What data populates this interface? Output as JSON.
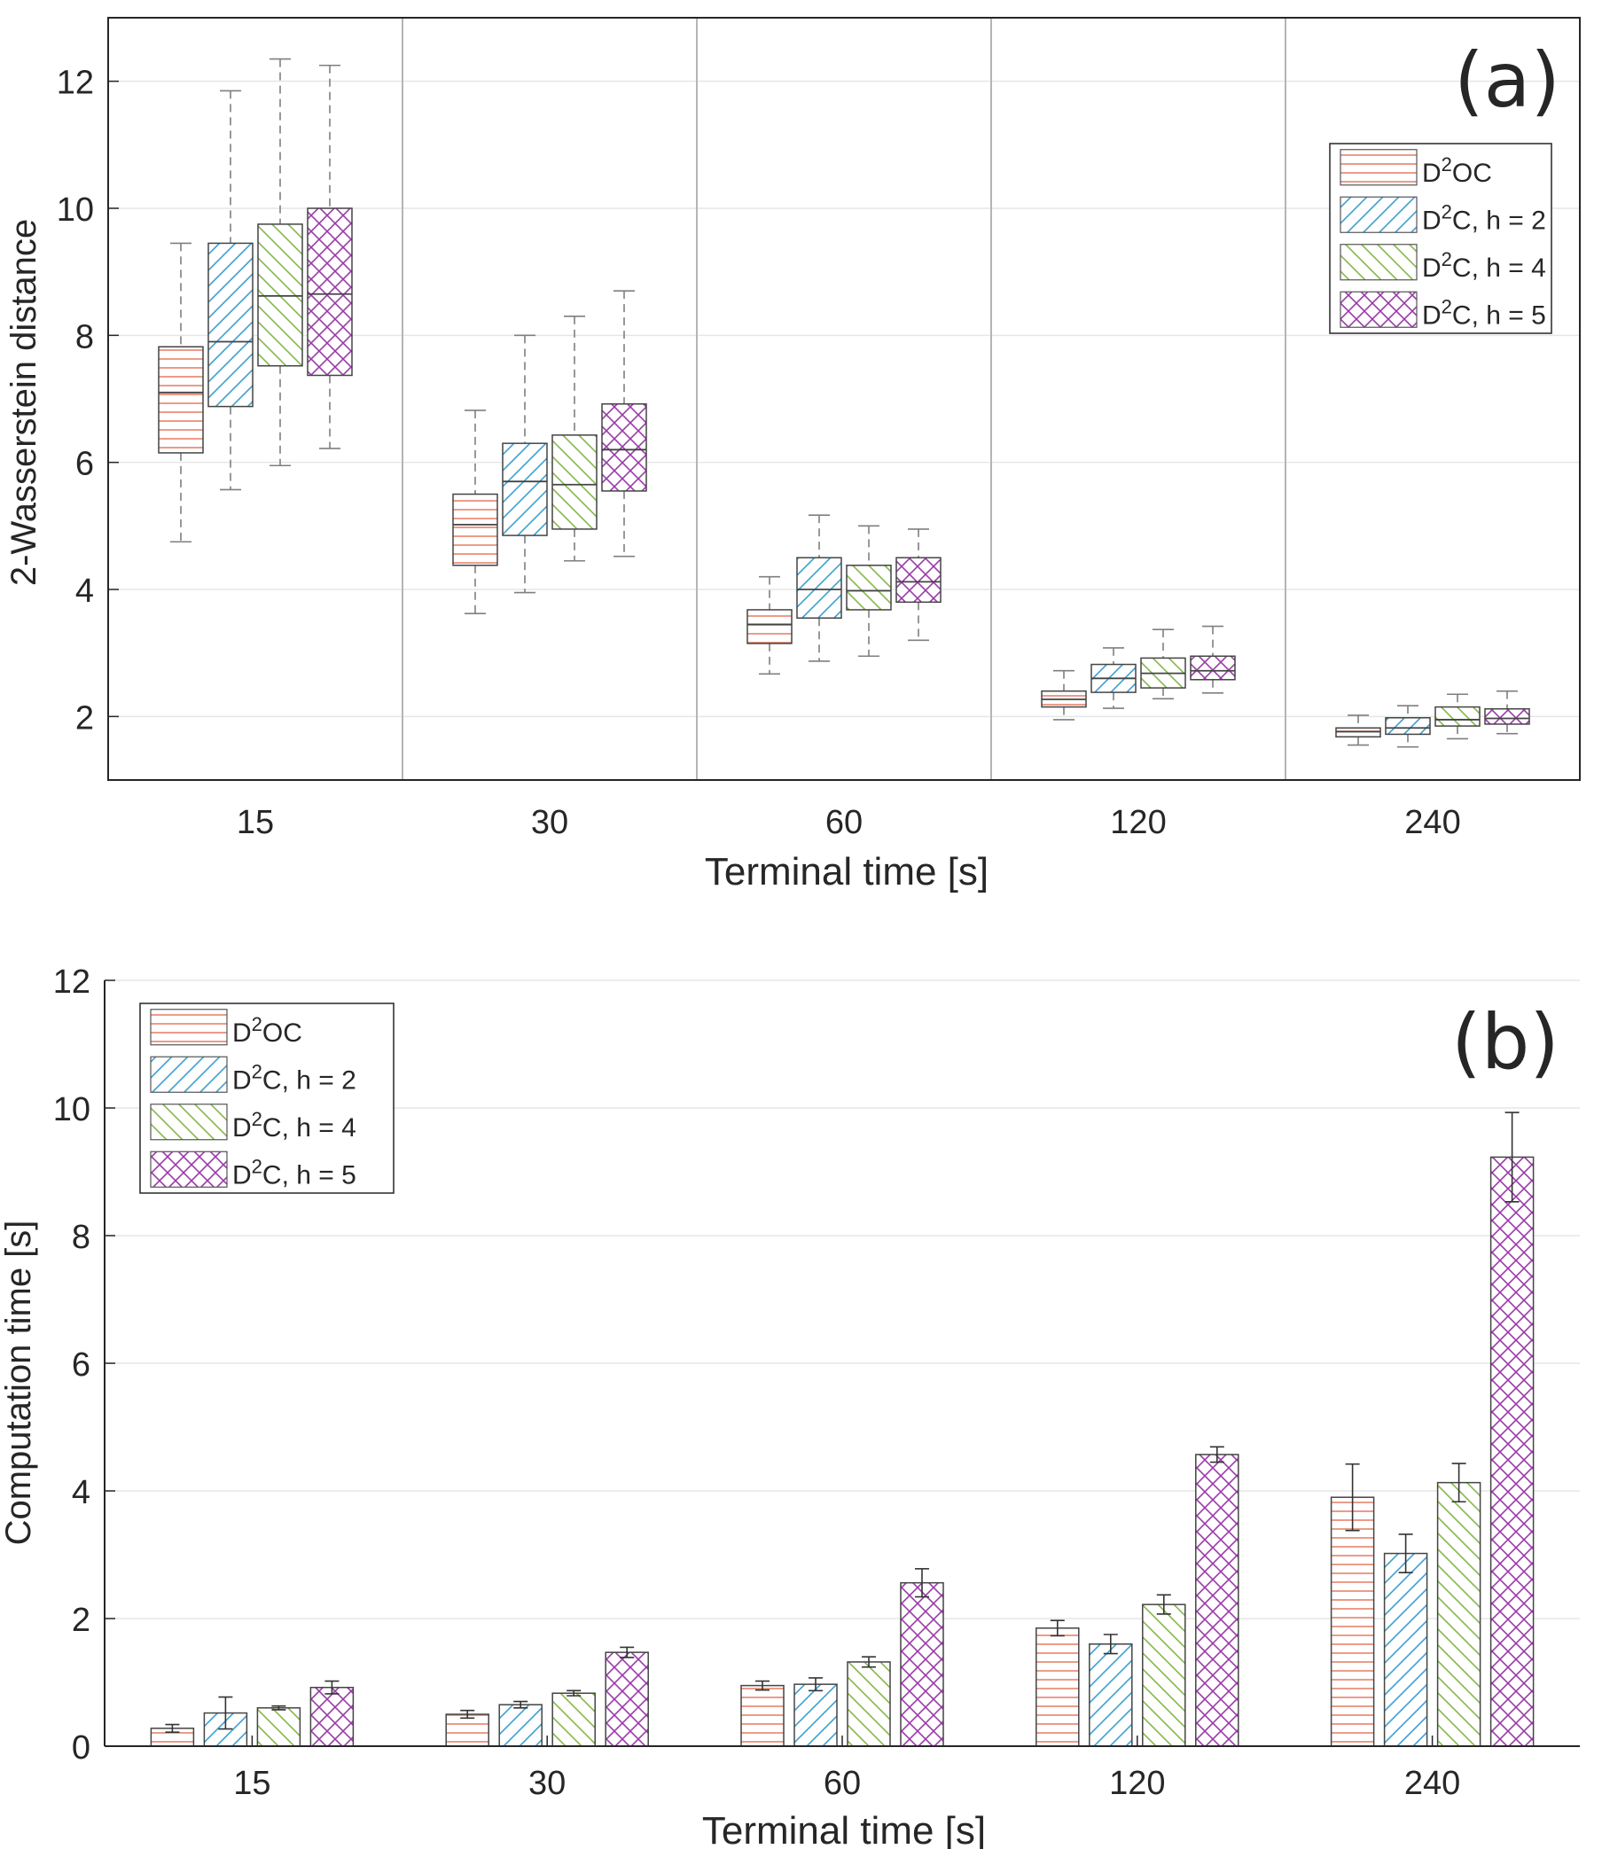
{
  "colors": {
    "D2OC": "#e8836b",
    "h2": "#3d9fd2",
    "h4": "#86b84a",
    "h5": "#9a3ba8",
    "axis": "#262626",
    "grid": "#e6e6e6",
    "whisker": "#7f7f7f",
    "separator": "#b5b5b5"
  },
  "legend_entries": [
    {
      "base": "D",
      "sup": "2",
      "rest": "OC",
      "pattern": "horizontal",
      "color_key": "D2OC"
    },
    {
      "base": "D",
      "sup": "2",
      "rest": "C, h = 2",
      "pattern": "diag-up",
      "color_key": "h2"
    },
    {
      "base": "D",
      "sup": "2",
      "rest": "C, h = 4",
      "pattern": "diag-down",
      "color_key": "h4"
    },
    {
      "base": "D",
      "sup": "2",
      "rest": "C, h = 5",
      "pattern": "cross",
      "color_key": "h5"
    }
  ],
  "chart_data": [
    {
      "type": "box",
      "panel_label": "(a)",
      "title": "",
      "xlabel": "Terminal time [s]",
      "ylabel": "2-Wasserstein distance",
      "categories": [
        "15",
        "30",
        "60",
        "120",
        "240"
      ],
      "ylim": [
        1,
        13
      ],
      "yticks": [
        2,
        4,
        6,
        8,
        10,
        12
      ],
      "grid": true,
      "legend_position": "top-right",
      "series": [
        {
          "name": "D2OC",
          "boxes": [
            {
              "min": 4.75,
              "q1": 6.15,
              "median": 7.1,
              "q3": 7.82,
              "max": 9.45
            },
            {
              "min": 3.62,
              "q1": 4.38,
              "median": 5.02,
              "q3": 5.5,
              "max": 6.82
            },
            {
              "min": 2.67,
              "q1": 3.15,
              "median": 3.45,
              "q3": 3.68,
              "max": 4.2
            },
            {
              "min": 1.95,
              "q1": 2.15,
              "median": 2.27,
              "q3": 2.4,
              "max": 2.72
            },
            {
              "min": 1.55,
              "q1": 1.68,
              "median": 1.76,
              "q3": 1.82,
              "max": 2.02
            }
          ]
        },
        {
          "name": "D2C, h = 2",
          "boxes": [
            {
              "min": 5.57,
              "q1": 6.88,
              "median": 7.9,
              "q3": 9.45,
              "max": 11.85
            },
            {
              "min": 3.95,
              "q1": 4.85,
              "median": 5.7,
              "q3": 6.3,
              "max": 8.0
            },
            {
              "min": 2.87,
              "q1": 3.55,
              "median": 4.0,
              "q3": 4.5,
              "max": 5.17
            },
            {
              "min": 2.13,
              "q1": 2.38,
              "median": 2.6,
              "q3": 2.82,
              "max": 3.08
            },
            {
              "min": 1.52,
              "q1": 1.72,
              "median": 1.82,
              "q3": 1.98,
              "max": 2.17
            }
          ]
        },
        {
          "name": "D2C, h = 4",
          "boxes": [
            {
              "min": 5.95,
              "q1": 7.52,
              "median": 8.62,
              "q3": 9.75,
              "max": 12.35
            },
            {
              "min": 4.45,
              "q1": 4.95,
              "median": 5.65,
              "q3": 6.43,
              "max": 8.3
            },
            {
              "min": 2.95,
              "q1": 3.68,
              "median": 3.98,
              "q3": 4.38,
              "max": 5.0
            },
            {
              "min": 2.28,
              "q1": 2.45,
              "median": 2.68,
              "q3": 2.92,
              "max": 3.37
            },
            {
              "min": 1.65,
              "q1": 1.85,
              "median": 1.95,
              "q3": 2.15,
              "max": 2.35
            }
          ]
        },
        {
          "name": "D2C, h = 5",
          "boxes": [
            {
              "min": 6.22,
              "q1": 7.37,
              "median": 8.65,
              "q3": 10.0,
              "max": 12.25
            },
            {
              "min": 4.52,
              "q1": 5.55,
              "median": 6.2,
              "q3": 6.92,
              "max": 8.7
            },
            {
              "min": 3.2,
              "q1": 3.8,
              "median": 4.12,
              "q3": 4.5,
              "max": 4.95
            },
            {
              "min": 2.37,
              "q1": 2.58,
              "median": 2.72,
              "q3": 2.95,
              "max": 3.42
            },
            {
              "min": 1.73,
              "q1": 1.88,
              "median": 1.97,
              "q3": 2.12,
              "max": 2.4
            }
          ]
        }
      ]
    },
    {
      "type": "bar",
      "panel_label": "(b)",
      "title": "",
      "xlabel": "Terminal time [s]",
      "ylabel": "Computation time [s]",
      "categories": [
        "15",
        "30",
        "60",
        "120",
        "240"
      ],
      "ylim": [
        0,
        12
      ],
      "yticks": [
        0,
        2,
        4,
        6,
        8,
        10,
        12
      ],
      "grid": true,
      "legend_position": "top-left",
      "series": [
        {
          "name": "D2OC",
          "values": [
            0.28,
            0.5,
            0.95,
            1.85,
            3.9
          ],
          "errors": [
            0.06,
            0.06,
            0.07,
            0.12,
            0.52
          ]
        },
        {
          "name": "D2C, h = 2",
          "values": [
            0.52,
            0.65,
            0.97,
            1.6,
            3.02
          ],
          "errors": [
            0.25,
            0.05,
            0.1,
            0.15,
            0.3
          ]
        },
        {
          "name": "D2C, h = 4",
          "values": [
            0.6,
            0.83,
            1.32,
            2.22,
            4.13
          ],
          "errors": [
            0.03,
            0.04,
            0.08,
            0.15,
            0.3
          ]
        },
        {
          "name": "D2C, h = 5",
          "values": [
            0.92,
            1.47,
            2.56,
            4.57,
            9.23
          ],
          "errors": [
            0.1,
            0.08,
            0.22,
            0.12,
            0.7
          ]
        }
      ]
    }
  ]
}
